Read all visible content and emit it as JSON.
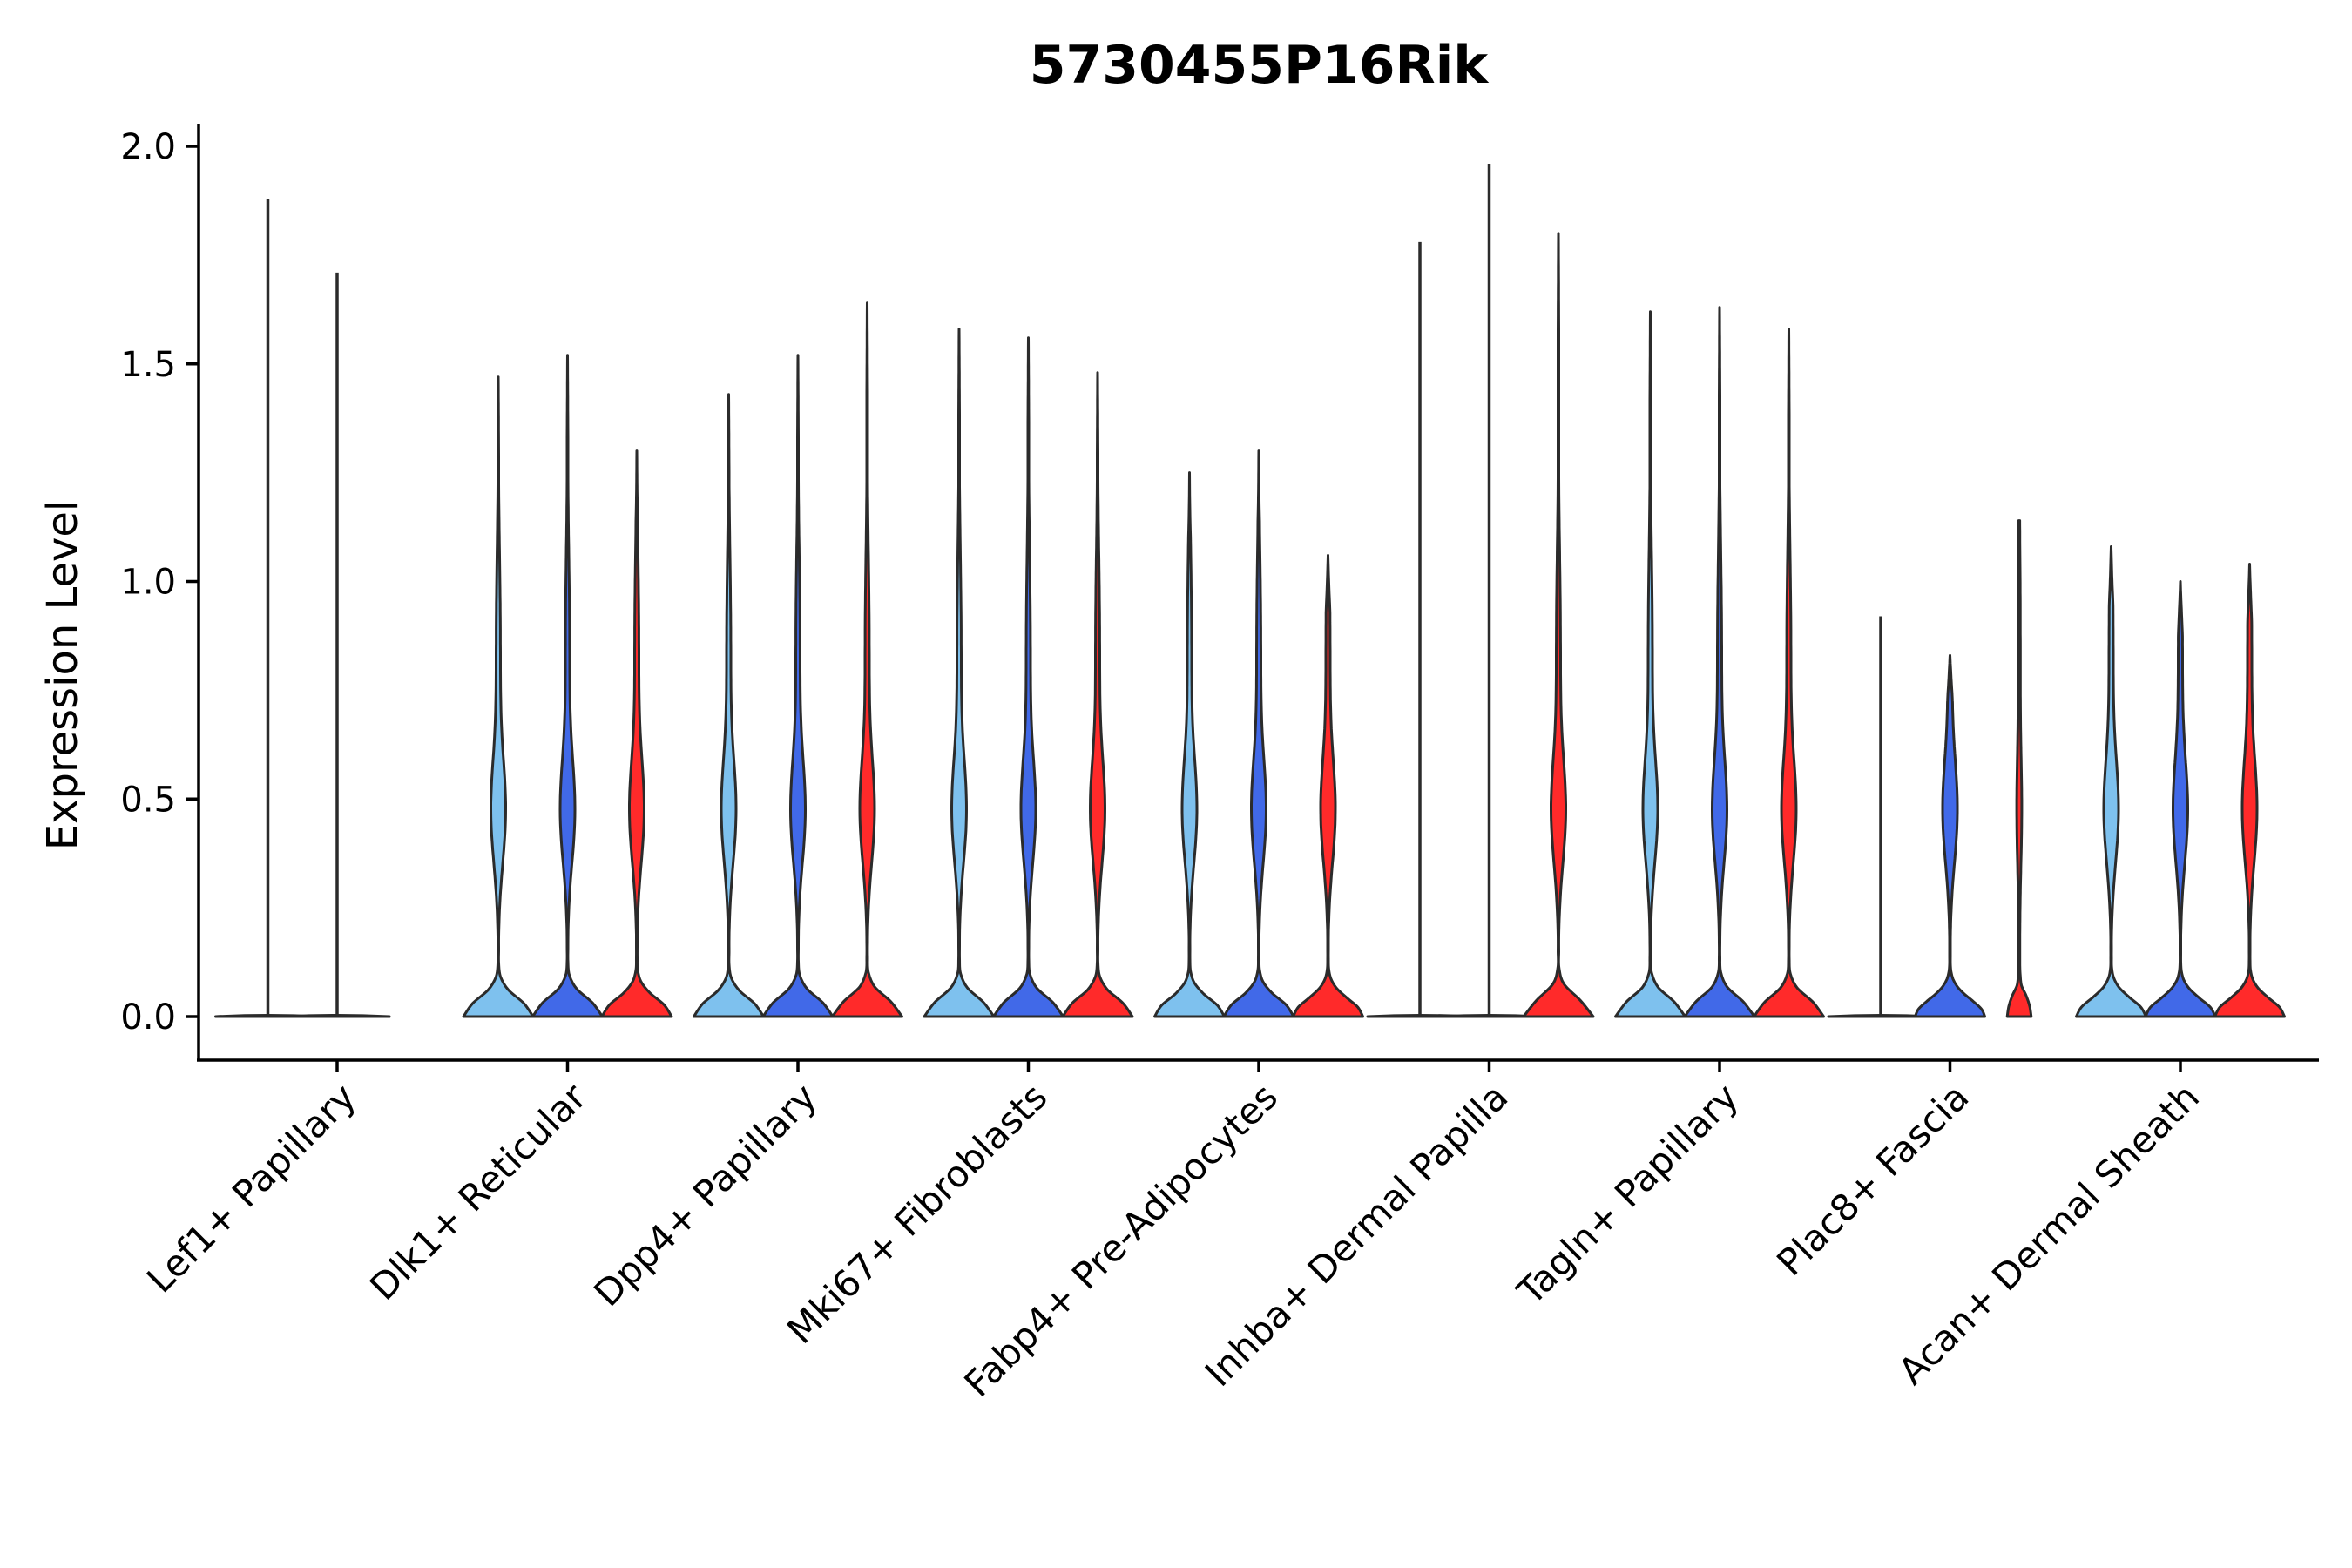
{
  "chart_data": {
    "type": "violin",
    "title": "5730455P16Rik",
    "xlabel": "",
    "ylabel": "Expression Level",
    "ylim": [
      -0.1,
      2.06
    ],
    "yticks": [
      0.0,
      0.5,
      1.0,
      1.5,
      2.0
    ],
    "ytick_labels": [
      "0.0",
      "0.5",
      "1.0",
      "1.5",
      "2.0"
    ],
    "colors": [
      "#7EC1EE",
      "#4169E8",
      "#FF2A2A"
    ],
    "categories": [
      "Lef1+ Papillary",
      "Dlk1+ Reticular",
      "Dpp4+ Papillary",
      "Mki67+ Fibroblasts",
      "Fabp4+ Pre-Adipocytes",
      "Inhba+ Dermal Papilla",
      "Tagln+ Papillary",
      "Plac8+ Fascia",
      "Acan+ Dermal Sheath"
    ],
    "violins": [
      [
        {
          "max": 1.88,
          "shape": "flat"
        },
        {
          "max": 1.71,
          "shape": "flat"
        },
        null
      ],
      [
        {
          "max": 1.47,
          "shape": "full"
        },
        {
          "max": 1.52,
          "shape": "full"
        },
        {
          "max": 1.3,
          "shape": "full"
        }
      ],
      [
        {
          "max": 1.43,
          "shape": "full"
        },
        {
          "max": 1.52,
          "shape": "full"
        },
        {
          "max": 1.64,
          "shape": "full"
        }
      ],
      [
        {
          "max": 1.58,
          "shape": "full"
        },
        {
          "max": 1.56,
          "shape": "full"
        },
        {
          "max": 1.48,
          "shape": "full"
        }
      ],
      [
        {
          "max": 1.25,
          "shape": "full"
        },
        {
          "max": 1.3,
          "shape": "full"
        },
        {
          "max": 1.06,
          "shape": "full"
        }
      ],
      [
        {
          "max": 1.78,
          "shape": "flat"
        },
        {
          "max": 1.96,
          "shape": "flat"
        },
        {
          "max": 1.8,
          "shape": "full"
        }
      ],
      [
        {
          "max": 1.62,
          "shape": "full"
        },
        {
          "max": 1.63,
          "shape": "full"
        },
        {
          "max": 1.58,
          "shape": "full"
        }
      ],
      [
        {
          "max": 0.92,
          "shape": "flat"
        },
        {
          "max": 0.83,
          "shape": "full"
        },
        {
          "max": 1.14,
          "shape": "small"
        }
      ],
      [
        {
          "max": 1.08,
          "shape": "full"
        },
        {
          "max": 1.0,
          "shape": "full"
        },
        {
          "max": 1.04,
          "shape": "full"
        }
      ]
    ]
  }
}
